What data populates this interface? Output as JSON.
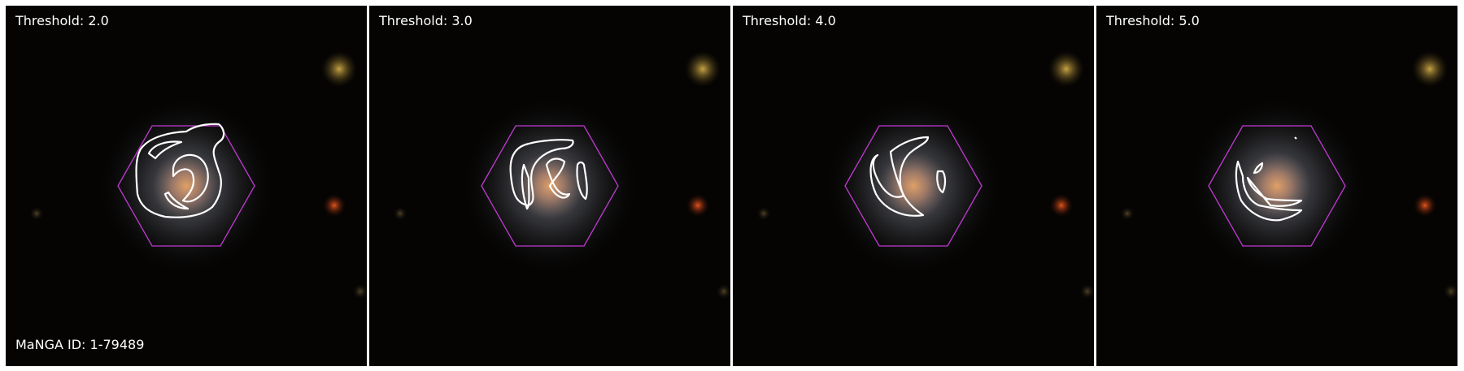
{
  "panels": [
    {
      "threshold_label": "Threshold: 2.0"
    },
    {
      "threshold_label": "Threshold: 3.0"
    },
    {
      "threshold_label": "Threshold: 4.0"
    },
    {
      "threshold_label": "Threshold: 5.0"
    }
  ],
  "manga_id_label": "MaNGA ID: 1-79489",
  "colors": {
    "background": "#050403",
    "hexagon": "#c03ad0",
    "contour": "#ffffff",
    "galaxy_core": "#d9a46a",
    "star_yellow": "#b8973a",
    "star_red": "#c8461c"
  }
}
